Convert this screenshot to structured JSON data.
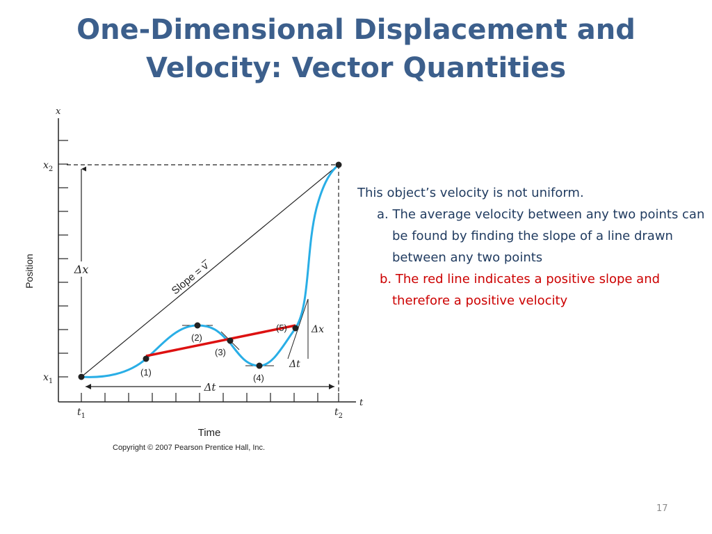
{
  "slide": {
    "title_line1": "One-Dimensional Displacement and",
    "title_line2": "Velocity: Vector Quantities",
    "page_number": "17"
  },
  "notes": {
    "intro": "This object’s velocity is not uniform.",
    "item_a": "a. The average velocity between any two points can be found by finding the slope of a line drawn between any two points",
    "item_b": "b. The red line indicates a positive slope and therefore a positive velocity"
  },
  "figure": {
    "axis_x_var": "x",
    "axis_t_var": "t",
    "x1_label": "x",
    "x1_sub": "1",
    "x2_label": "x",
    "x2_sub": "2",
    "t1_label": "t",
    "t1_sub": "1",
    "t2_label": "t",
    "t2_sub": "2",
    "y_axis_title": "Position",
    "x_axis_title": "Time",
    "delta_x": "Δx",
    "delta_t": "Δt",
    "slope_label": "Slope = v",
    "points": [
      "(1)",
      "(2)",
      "(3)",
      "(4)",
      "(5)"
    ],
    "copyright": "Copyright © 2007 Pearson Prentice Hall, Inc.",
    "colors": {
      "curve": "#29aee6",
      "secant": "#dd1111",
      "axis": "#222222"
    }
  }
}
